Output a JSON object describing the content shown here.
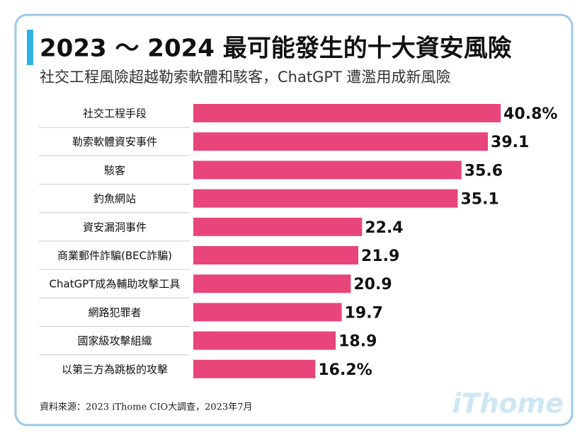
{
  "chart_data": {
    "type": "bar",
    "orientation": "horizontal",
    "title": "2023 ～ 2024 最可能發生的十大資安風險",
    "subtitle": "社交工程風險超越勒索軟體和駭客，ChatGPT 遭濫用成新風險",
    "categories": [
      "社交工程手段",
      "勒索軟體資安事件",
      "駭客",
      "釣魚網站",
      "資安漏洞事件",
      "商業郵件詐騙(BEC詐騙)",
      "ChatGPT成為輔助攻擊工具",
      "網路犯罪者",
      "國家級攻擊組織",
      "以第三方為跳板的攻擊"
    ],
    "values": [
      40.8,
      39.1,
      35.6,
      35.1,
      22.4,
      21.9,
      20.9,
      19.7,
      18.9,
      16.2
    ],
    "value_labels": [
      "40.8%",
      "39.1",
      "35.6",
      "35.1",
      "22.4",
      "21.9",
      "20.9",
      "19.7",
      "18.9",
      "16.2%"
    ],
    "color": "#e8457a",
    "source": "資料來源：2023 iThome CIO大調查，2023年7月",
    "watermark": "iThome"
  }
}
